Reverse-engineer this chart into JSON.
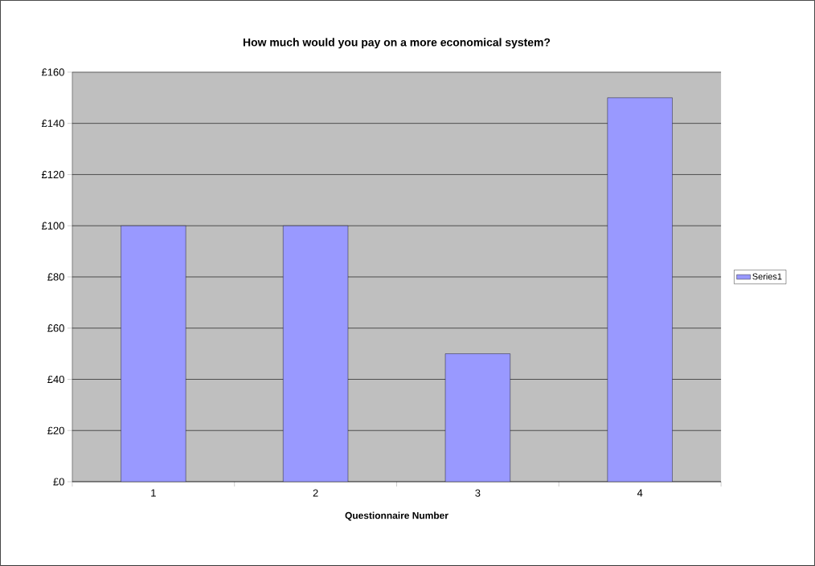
{
  "chart_data": {
    "type": "bar",
    "title": "How much would you pay on a more economical system?",
    "xlabel": "Questionnaire Number",
    "categories": [
      "1",
      "2",
      "3",
      "4"
    ],
    "series": [
      {
        "name": "Series1",
        "color": "#9999ff",
        "values": [
          100,
          100,
          50,
          150
        ]
      }
    ],
    "ylim": [
      0,
      160
    ],
    "yticks": [
      {
        "value": 0,
        "label": "£0"
      },
      {
        "value": 20,
        "label": "£20"
      },
      {
        "value": 40,
        "label": "£40"
      },
      {
        "value": 60,
        "label": "£60"
      },
      {
        "value": 80,
        "label": "£80"
      },
      {
        "value": 100,
        "label": "£100"
      },
      {
        "value": 120,
        "label": "£120"
      },
      {
        "value": 140,
        "label": "£140"
      },
      {
        "value": 160,
        "label": "£160"
      }
    ],
    "grid": "y",
    "legend": "right"
  }
}
